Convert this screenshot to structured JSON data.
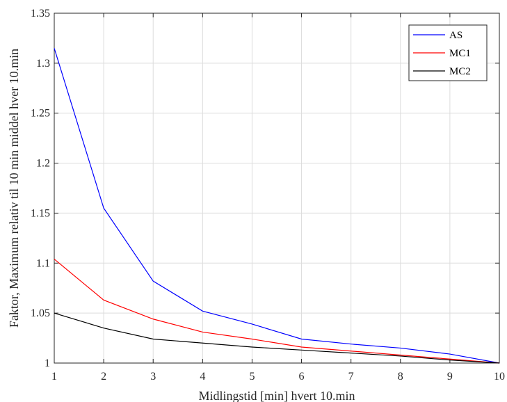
{
  "chart_data": {
    "type": "line",
    "title": "",
    "xlabel": "Midlingstid [min] hvert 10.min",
    "ylabel": "Faktor, Maximum relativ til 10 min middel hver 10.min",
    "xlim": [
      1,
      10
    ],
    "ylim": [
      1,
      1.35
    ],
    "xticks": [
      "1",
      "2",
      "3",
      "4",
      "5",
      "6",
      "7",
      "8",
      "9",
      "10"
    ],
    "yticks": [
      "1",
      "1.05",
      "1.1",
      "1.15",
      "1.2",
      "1.25",
      "1.3",
      "1.35"
    ],
    "grid": true,
    "legend_position": "top-right",
    "x": [
      1,
      2,
      3,
      4,
      5,
      6,
      7,
      8,
      9,
      10
    ],
    "series": [
      {
        "name": "AS",
        "color": "#0000ff",
        "values": [
          1.315,
          1.155,
          1.082,
          1.052,
          1.039,
          1.024,
          1.019,
          1.015,
          1.009,
          1.0
        ]
      },
      {
        "name": "MC1",
        "color": "#ff0000",
        "values": [
          1.104,
          1.063,
          1.044,
          1.031,
          1.024,
          1.016,
          1.012,
          1.008,
          1.004,
          1.0
        ]
      },
      {
        "name": "MC2",
        "color": "#000000",
        "values": [
          1.05,
          1.035,
          1.024,
          1.02,
          1.016,
          1.013,
          1.01,
          1.007,
          1.003,
          1.0
        ]
      }
    ]
  }
}
